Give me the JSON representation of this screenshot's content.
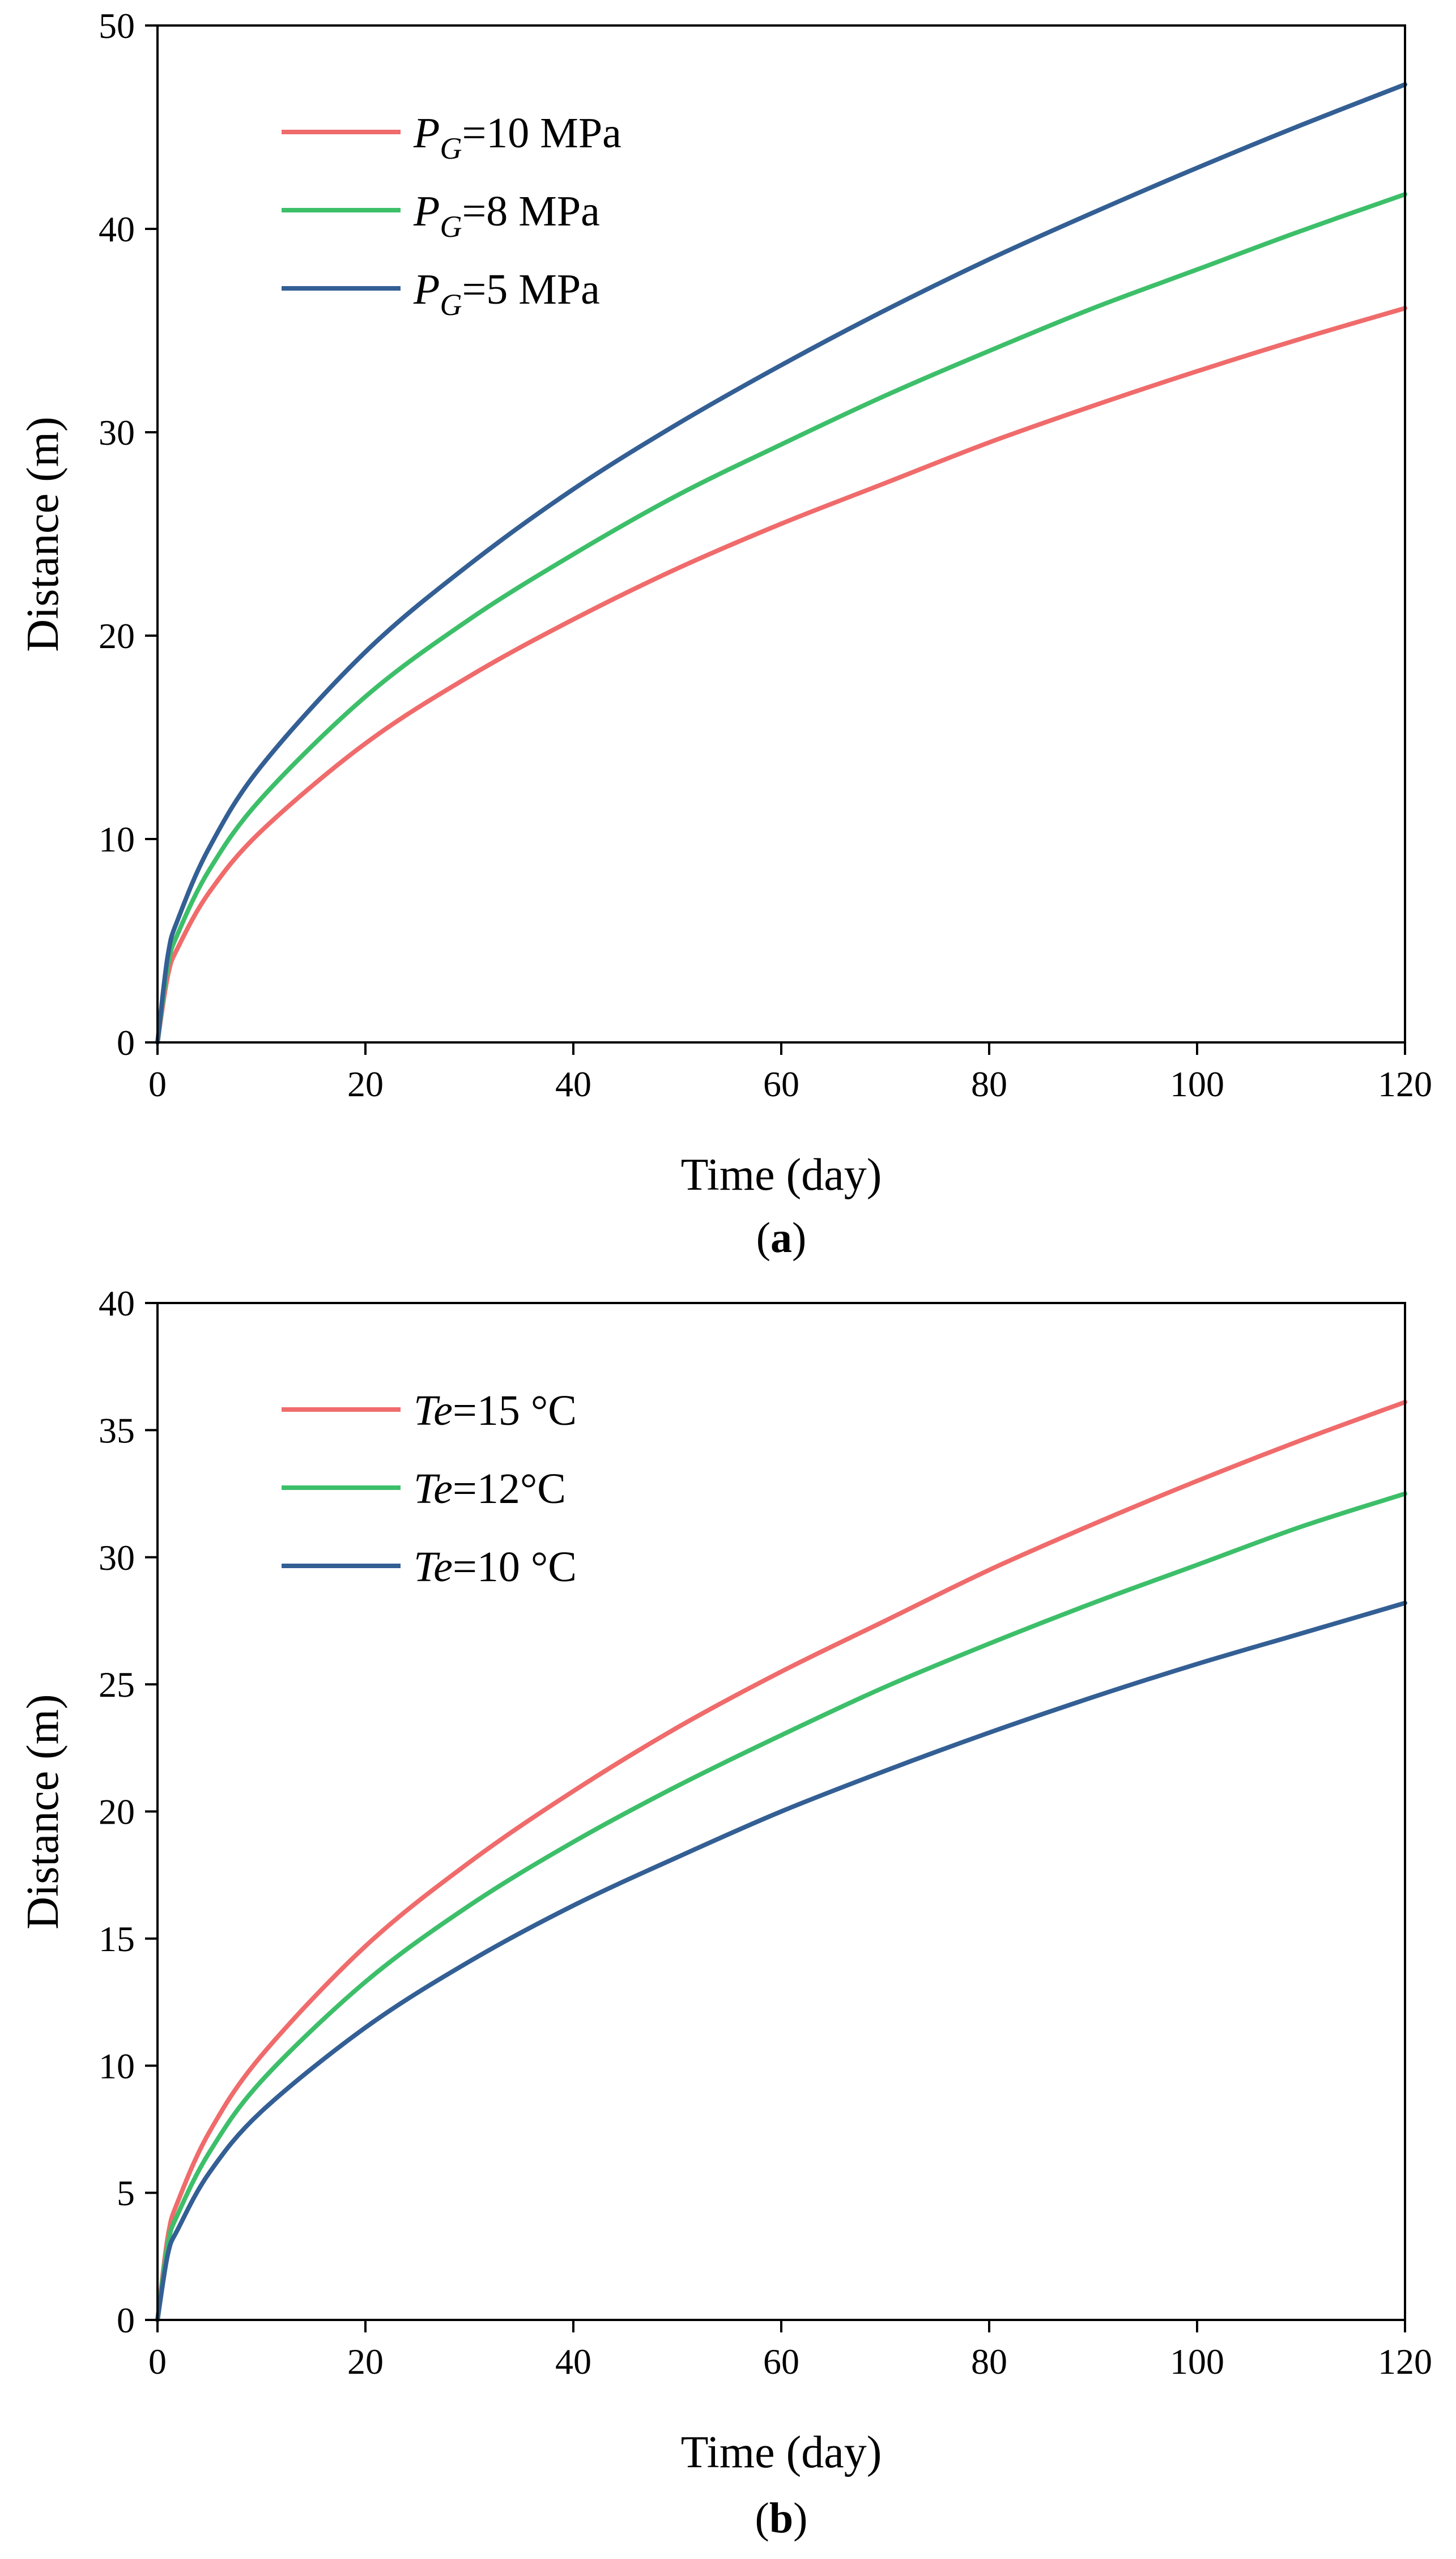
{
  "chart_data": [
    {
      "panel": "a",
      "panel_label": "a",
      "type": "line",
      "title": "",
      "xlabel": "Time (day)",
      "ylabel": "Distance (m)",
      "xlim": [
        0,
        120
      ],
      "ylim": [
        0,
        50
      ],
      "xticks": [
        0,
        20,
        40,
        60,
        80,
        100,
        120
      ],
      "yticks": [
        0,
        10,
        20,
        30,
        40,
        50
      ],
      "grid": false,
      "legend_position": "top-left",
      "x": [
        0,
        1,
        2,
        5,
        10,
        20,
        30,
        40,
        50,
        60,
        70,
        80,
        90,
        100,
        110,
        120
      ],
      "series": [
        {
          "name": "PG=10 MPa",
          "label": {
            "italic": "P",
            "sub": "G",
            "rest": "=10 MPa"
          },
          "color": "#f06b6b",
          "values": [
            0,
            3.3,
            4.7,
            7.4,
            10.4,
            14.7,
            18.0,
            20.8,
            23.3,
            25.5,
            27.5,
            29.5,
            31.3,
            33.0,
            34.6,
            36.1
          ]
        },
        {
          "name": "PG=8 MPa",
          "label": {
            "italic": "P",
            "sub": "G",
            "rest": "=8 MPa"
          },
          "color": "#3dbf6a",
          "values": [
            0,
            3.8,
            5.4,
            8.5,
            12.0,
            17.0,
            20.8,
            24.0,
            26.9,
            29.4,
            31.8,
            34.0,
            36.1,
            38.0,
            39.9,
            41.7
          ]
        },
        {
          "name": "PG=5 MPa",
          "label": {
            "italic": "P",
            "sub": "G",
            "rest": "=5 MPa"
          },
          "color": "#335f94",
          "values": [
            0,
            4.3,
            6.1,
            9.6,
            13.6,
            19.2,
            23.5,
            27.2,
            30.4,
            33.3,
            36.0,
            38.5,
            40.8,
            43.0,
            45.1,
            47.1
          ]
        }
      ]
    },
    {
      "panel": "b",
      "panel_label": "b",
      "type": "line",
      "title": "",
      "xlabel": "Time (day)",
      "ylabel": "Distance (m)",
      "xlim": [
        0,
        120
      ],
      "ylim": [
        0,
        40
      ],
      "xticks": [
        0,
        20,
        40,
        60,
        80,
        100,
        120
      ],
      "yticks": [
        0,
        5,
        10,
        15,
        20,
        25,
        30,
        35,
        40
      ],
      "grid": false,
      "legend_position": "top-left",
      "x": [
        0,
        1,
        2,
        5,
        10,
        20,
        30,
        40,
        50,
        60,
        70,
        80,
        90,
        100,
        110,
        120
      ],
      "series": [
        {
          "name": "Te=15 °C",
          "label": {
            "italic": "Te",
            "sub": "",
            "rest": "=15 °C"
          },
          "color": "#f06b6b",
          "values": [
            0,
            3.3,
            4.7,
            7.4,
            10.4,
            14.7,
            18.0,
            20.8,
            23.3,
            25.5,
            27.5,
            29.5,
            31.3,
            33.0,
            34.6,
            36.1
          ]
        },
        {
          "name": "Te=12°C",
          "label": {
            "italic": "Te",
            "sub": "",
            "rest": "=12°C"
          },
          "color": "#3dbf6a",
          "values": [
            0,
            3.0,
            4.2,
            6.6,
            9.4,
            13.3,
            16.3,
            18.8,
            21.0,
            23.0,
            24.9,
            26.6,
            28.2,
            29.7,
            31.2,
            32.5
          ]
        },
        {
          "name": "Te=10 °C",
          "label": {
            "italic": "Te",
            "sub": "",
            "rest": "=10 °C"
          },
          "color": "#335f94",
          "values": [
            0,
            2.6,
            3.6,
            5.8,
            8.2,
            11.5,
            14.1,
            16.3,
            18.2,
            20.0,
            21.6,
            23.1,
            24.5,
            25.8,
            27.0,
            28.2
          ]
        }
      ]
    }
  ]
}
